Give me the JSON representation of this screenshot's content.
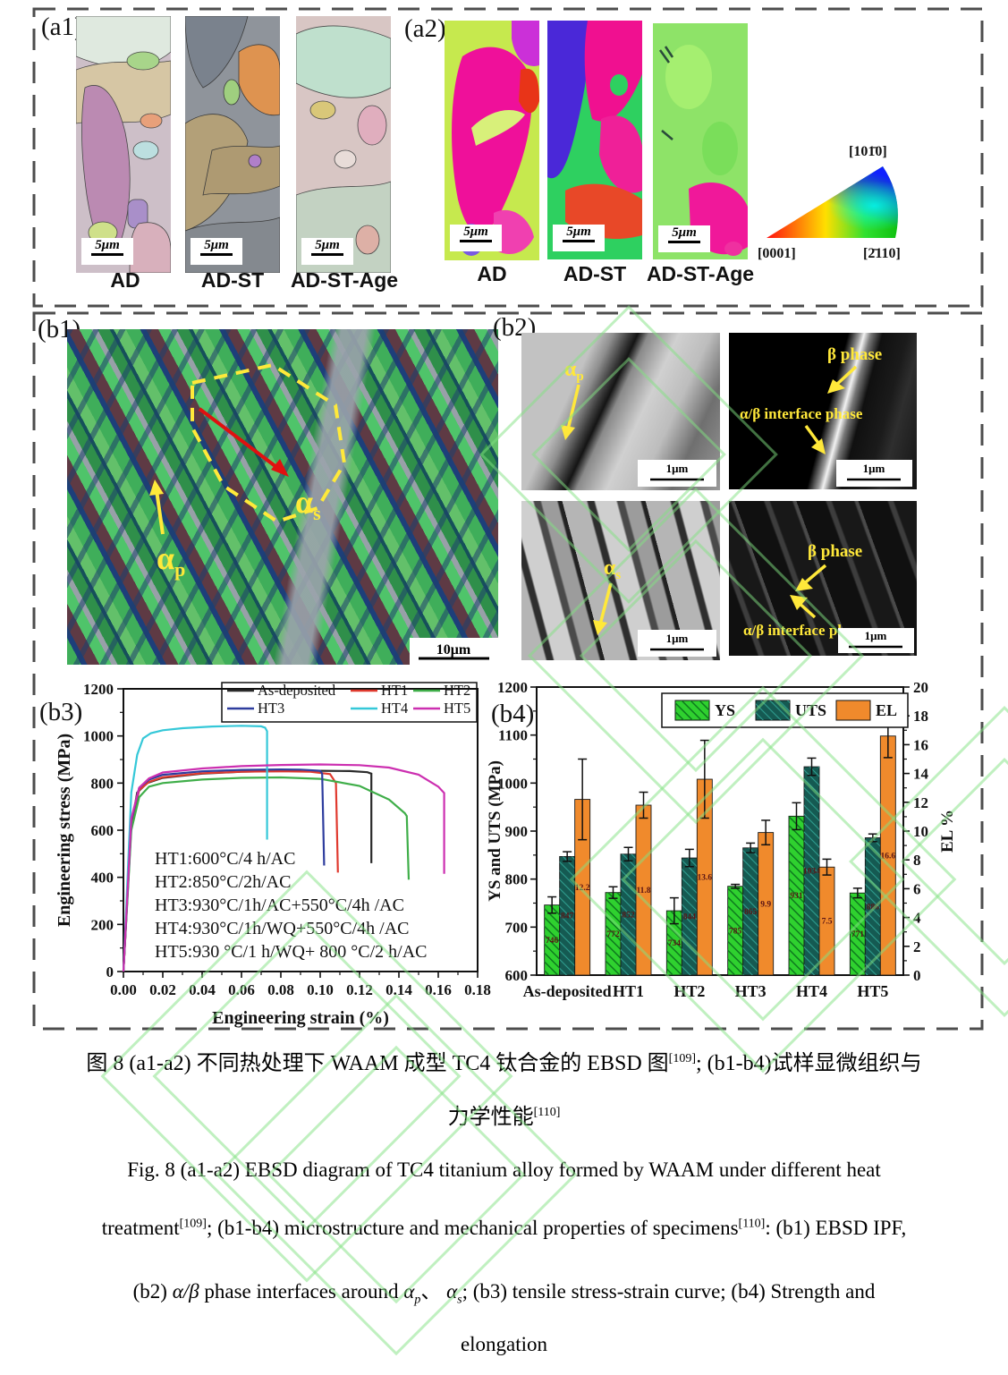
{
  "section_a": {
    "a1": {
      "label": "(a1)",
      "panels": [
        {
          "name": "AD",
          "scale": "5μm"
        },
        {
          "name": "AD-ST",
          "scale": "5μm"
        },
        {
          "name": "AD-ST-Age",
          "scale": "5μm"
        }
      ]
    },
    "a2": {
      "label": "(a2)",
      "panels": [
        {
          "name": "AD",
          "scale": "5μm"
        },
        {
          "name": "AD-ST",
          "scale": "5μm"
        },
        {
          "name": "AD-ST-Age",
          "scale": "5μm"
        }
      ],
      "ipf": {
        "top": "[101̄0]",
        "bottom_left": "[0001]",
        "bottom_right": "[2̄110]"
      }
    }
  },
  "section_b": {
    "b1": {
      "label": "(b1)",
      "alpha_p": "α",
      "alpha_p_sub": "p",
      "alpha_s": "α",
      "alpha_s_sub": "s",
      "scale": "10μm"
    },
    "b2": {
      "label": "(b2)",
      "tem1": {
        "label": "α",
        "label_sub": "p",
        "scale": "1μm"
      },
      "tem2": {
        "beta": "β phase",
        "interface": "α/β interface phase",
        "scale": "1μm"
      },
      "tem3": {
        "label": "α",
        "label_sub": "s",
        "scale": "1μm"
      },
      "tem4": {
        "beta": "β phase",
        "interface": "α/β interface phase",
        "scale": "1μm"
      }
    },
    "b3_label": "(b3)",
    "b4_label": "(b4)"
  },
  "chart_data": [
    {
      "type": "line",
      "xlabel": "Engineering strain (%)",
      "ylabel": "Engineering stress (MPa)",
      "xlim": [
        0,
        0.18
      ],
      "ylim": [
        0,
        1200
      ],
      "xticks": [
        0.0,
        0.02,
        0.04,
        0.06,
        0.08,
        0.1,
        0.12,
        0.14,
        0.16,
        0.18
      ],
      "xtick_labels": [
        "0.00",
        "0.02",
        "0.04",
        "0.06",
        "0.08",
        "0.10",
        "0.12",
        "0.14",
        "0.16",
        "0.18"
      ],
      "yticks": [
        0,
        200,
        400,
        600,
        800,
        1000,
        1200
      ],
      "legend_position": "top-inside-box",
      "grid": false,
      "annotations": [
        "HT1:600°C/4 h/AC",
        "HT2:850°C/2h/AC",
        "HT3:930°C/1h/AC+550°C/4h /AC",
        "HT4:930°C/1h/WQ+550°C/4h /AC",
        "HT5:930 °C/1 h/WQ+ 800 °C/2 h/AC"
      ],
      "series": [
        {
          "name": "As-deposited",
          "color": "#2b2b2b",
          "points": [
            [
              0,
              0
            ],
            [
              0.004,
              620
            ],
            [
              0.007,
              760
            ],
            [
              0.012,
              800
            ],
            [
              0.02,
              822
            ],
            [
              0.04,
              840
            ],
            [
              0.06,
              848
            ],
            [
              0.08,
              851
            ],
            [
              0.1,
              852
            ],
            [
              0.115,
              851
            ],
            [
              0.124,
              846
            ],
            [
              0.126,
              840
            ],
            [
              0.126,
              460
            ]
          ]
        },
        {
          "name": "HT1",
          "color": "#e03a2f",
          "points": [
            [
              0,
              0
            ],
            [
              0.004,
              630
            ],
            [
              0.008,
              770
            ],
            [
              0.013,
              805
            ],
            [
              0.02,
              825
            ],
            [
              0.04,
              842
            ],
            [
              0.06,
              848
            ],
            [
              0.08,
              850
            ],
            [
              0.095,
              848
            ],
            [
              0.105,
              838
            ],
            [
              0.108,
              800
            ],
            [
              0.109,
              420
            ]
          ]
        },
        {
          "name": "HT2",
          "color": "#3fae49",
          "points": [
            [
              0,
              0
            ],
            [
              0.004,
              600
            ],
            [
              0.008,
              740
            ],
            [
              0.013,
              785
            ],
            [
              0.02,
              800
            ],
            [
              0.04,
              815
            ],
            [
              0.06,
              822
            ],
            [
              0.08,
              824
            ],
            [
              0.1,
              818
            ],
            [
              0.12,
              788
            ],
            [
              0.135,
              730
            ],
            [
              0.143,
              672
            ],
            [
              0.144,
              660
            ],
            [
              0.145,
              390
            ]
          ]
        },
        {
          "name": "HT3",
          "color": "#2e3d9e",
          "points": [
            [
              0,
              0
            ],
            [
              0.004,
              640
            ],
            [
              0.008,
              780
            ],
            [
              0.013,
              815
            ],
            [
              0.02,
              835
            ],
            [
              0.04,
              850
            ],
            [
              0.06,
              856
            ],
            [
              0.08,
              858
            ],
            [
              0.09,
              857
            ],
            [
              0.1,
              852
            ],
            [
              0.101,
              840
            ],
            [
              0.102,
              450
            ]
          ]
        },
        {
          "name": "HT4",
          "color": "#35c8d8",
          "points": [
            [
              0,
              0
            ],
            [
              0.004,
              760
            ],
            [
              0.007,
              920
            ],
            [
              0.01,
              990
            ],
            [
              0.014,
              1012
            ],
            [
              0.02,
              1024
            ],
            [
              0.03,
              1033
            ],
            [
              0.045,
              1040
            ],
            [
              0.06,
              1043
            ],
            [
              0.07,
              1041
            ],
            [
              0.072,
              1035
            ],
            [
              0.073,
              1020
            ],
            [
              0.073,
              560
            ]
          ]
        },
        {
          "name": "HT5",
          "color": "#cc2fb0",
          "points": [
            [
              0,
              0
            ],
            [
              0.004,
              650
            ],
            [
              0.008,
              780
            ],
            [
              0.013,
              820
            ],
            [
              0.02,
              845
            ],
            [
              0.04,
              862
            ],
            [
              0.06,
              872
            ],
            [
              0.08,
              877
            ],
            [
              0.1,
              879
            ],
            [
              0.12,
              876
            ],
            [
              0.135,
              866
            ],
            [
              0.15,
              836
            ],
            [
              0.16,
              785
            ],
            [
              0.163,
              758
            ],
            [
              0.163,
              415
            ]
          ]
        }
      ]
    },
    {
      "type": "bar",
      "categories": [
        "As-deposited",
        "HT1",
        "HT2",
        "HT3",
        "HT4",
        "HT5"
      ],
      "ylabel_left": "YS and UTS (MPa)",
      "ylabel_right": "EL %",
      "ylim_left": [
        600,
        1200
      ],
      "ylim_right": [
        0,
        20
      ],
      "yticks_left": [
        600,
        700,
        800,
        900,
        1000,
        1100,
        1200
      ],
      "yticks_right": [
        0,
        2,
        4,
        6,
        8,
        10,
        12,
        14,
        16,
        18,
        20
      ],
      "legend_position": "top-inside-box",
      "series": [
        {
          "name": "YS",
          "axis": "left",
          "color": "#2fd12f",
          "hatch": "diag-green",
          "values": [
            746,
            772,
            734,
            785,
            931,
            771
          ],
          "errors": [
            17,
            12,
            27,
            4,
            28,
            10
          ],
          "labels": [
            "746",
            "772",
            "734",
            "785",
            "931",
            "771"
          ]
        },
        {
          "name": "UTS",
          "axis": "left",
          "color": "#155a52",
          "hatch": "diag-teal",
          "values": [
            847,
            852,
            844,
            865,
            1034,
            886
          ],
          "errors": [
            10,
            14,
            18,
            10,
            18,
            8
          ],
          "labels": [
            "847",
            "852",
            "844",
            "865",
            "1034",
            "886"
          ]
        },
        {
          "name": "EL",
          "axis": "right",
          "color": "#f08a2c",
          "hatch": "none",
          "values": [
            12.2,
            11.8,
            13.6,
            9.9,
            7.5,
            16.6
          ],
          "errors": [
            2.8,
            0.9,
            2.7,
            0.85,
            0.55,
            1.5
          ],
          "labels": [
            "12.2",
            "11.8",
            "13.6",
            "9.9",
            "7.5",
            "16.6"
          ]
        }
      ]
    }
  ],
  "caption": {
    "zh_line1_pre": "图 8 (a1-a2) 不同热处理下 WAAM 成型 TC4 钛合金的 EBSD 图",
    "zh_line1_sup": "[109]",
    "zh_line1_post": "; (b1-b4)试样显微组织与",
    "zh_line2_pre": "力学性能",
    "zh_line2_sup": "[110]",
    "en_line1": "Fig. 8 (a1-a2) EBSD diagram of TC4 titanium alloy formed by WAAM under different heat",
    "en_line2_pre": "treatment",
    "en_line2_sup1": "[109]",
    "en_line2_mid": "; (b1-b4) microstructure and mechanical properties of specimens",
    "en_line2_sup2": "[110]",
    "en_line2_post": ": (b1) EBSD IPF,",
    "en_line3_pre": "(b2) ",
    "en_line3_it1": "α/β",
    "en_line3_mid1": " phase interfaces around ",
    "en_line3_it2": "α",
    "en_line3_sub1": "p",
    "en_line3_mid2": "、 ",
    "en_line3_it3": "α",
    "en_line3_sub2": "s",
    "en_line3_post": "; (b3) tensile stress-strain curve; (b4) Strength and",
    "en_line4": "elongation"
  }
}
